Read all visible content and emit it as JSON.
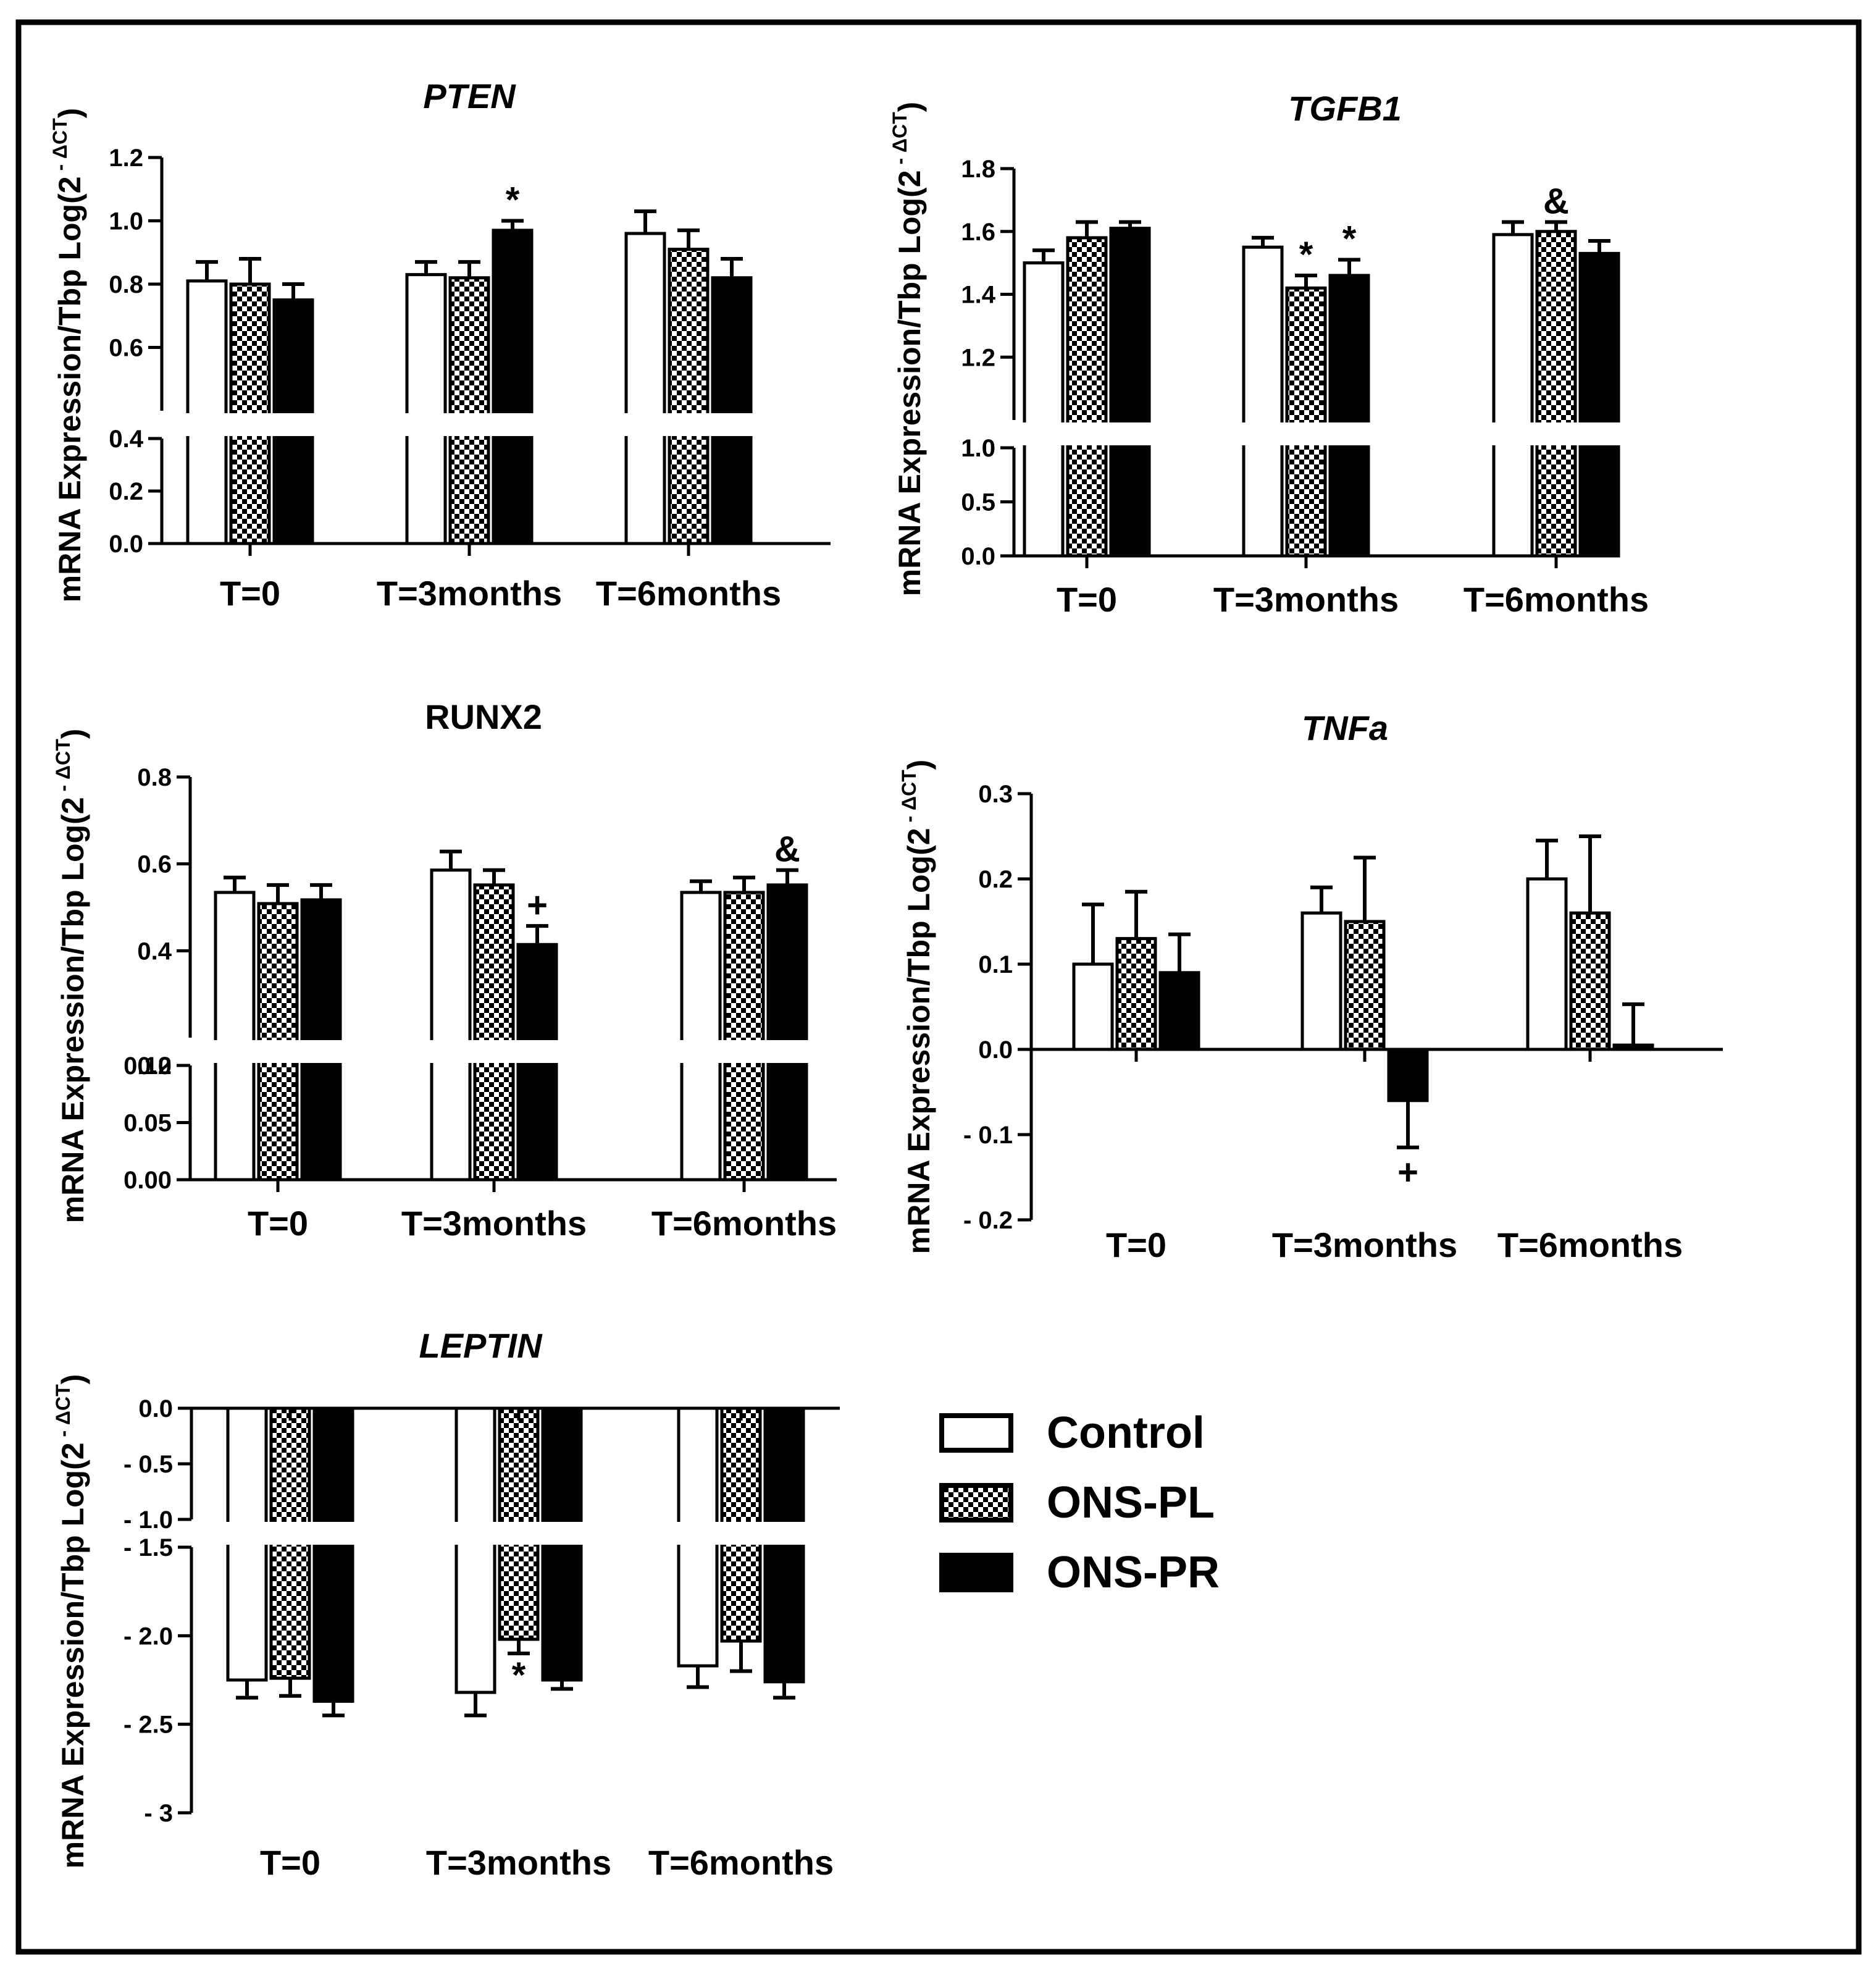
{
  "legend": {
    "items": [
      {
        "label": "Control",
        "style": "open"
      },
      {
        "label": "ONS-PL",
        "style": "checker"
      },
      {
        "label": "ONS-PR",
        "style": "solid"
      }
    ]
  },
  "chart_data": [
    {
      "id": "pten",
      "type": "bar",
      "title": "PTEN",
      "title_italic": true,
      "ylabel": "mRNA Expression/Tbp Log(2",
      "ylabel_exponent": "- ΔCT",
      "ylabel_close": ")",
      "categories": [
        "T=0",
        "T=3months",
        "T=6months"
      ],
      "series": [
        {
          "name": "Control",
          "values": [
            0.81,
            0.83,
            0.96
          ],
          "errors": [
            0.06,
            0.04,
            0.07
          ]
        },
        {
          "name": "ONS-PL",
          "values": [
            0.8,
            0.82,
            0.91
          ],
          "errors": [
            0.08,
            0.05,
            0.06
          ]
        },
        {
          "name": "ONS-PR",
          "values": [
            0.75,
            0.97,
            0.82
          ],
          "errors": [
            0.05,
            0.03,
            0.06
          ]
        }
      ],
      "segments": [
        {
          "range": [
            0.0,
            0.4
          ],
          "ticks": [
            "0.0",
            "0.2",
            "0.4"
          ]
        },
        {
          "range": [
            0.4,
            1.2
          ],
          "ticks": [
            "0.4",
            "0.6",
            "0.8",
            "1.0",
            "1.2"
          ]
        }
      ],
      "annotations": [
        {
          "series": 2,
          "category": 1,
          "text": "*"
        }
      ]
    },
    {
      "id": "tgfb1",
      "type": "bar",
      "title": "TGFB1",
      "title_italic": true,
      "ylabel": "mRNA Expression/Tbp Log(2",
      "ylabel_exponent": "- ΔCT",
      "ylabel_close": ")",
      "categories": [
        "T=0",
        "T=3months",
        "T=6months"
      ],
      "series": [
        {
          "name": "Control",
          "values": [
            1.5,
            1.55,
            1.59
          ],
          "errors": [
            0.04,
            0.03,
            0.04
          ]
        },
        {
          "name": "ONS-PL",
          "values": [
            1.58,
            1.42,
            1.6
          ],
          "errors": [
            0.05,
            0.04,
            0.03
          ]
        },
        {
          "name": "ONS-PR",
          "values": [
            1.61,
            1.46,
            1.53
          ],
          "errors": [
            0.02,
            0.05,
            0.04
          ]
        }
      ],
      "segments": [
        {
          "range": [
            0.0,
            1.0
          ],
          "ticks": [
            "0.0",
            "0.5",
            "1.0"
          ]
        },
        {
          "range": [
            1.0,
            1.8
          ],
          "ticks": [
            "1.0",
            "1.2",
            "1.4",
            "1.6",
            "1.8"
          ]
        }
      ],
      "annotations": [
        {
          "series": 1,
          "category": 1,
          "text": "*"
        },
        {
          "series": 2,
          "category": 1,
          "text": "*"
        },
        {
          "series": 1,
          "category": 2,
          "text": "&"
        }
      ]
    },
    {
      "id": "runx2",
      "type": "bar",
      "title": "RUNX2",
      "title_italic": false,
      "ylabel": "mRNA Expression/Tbp Log(2",
      "ylabel_exponent": "- ΔCT",
      "ylabel_close": ")",
      "categories": [
        "T=0",
        "T=3months",
        "T=6months"
      ],
      "series": [
        {
          "name": "Control",
          "values": [
            0.49,
            0.55,
            0.49
          ],
          "errors": [
            0.04,
            0.05,
            0.03
          ]
        },
        {
          "name": "ONS-PL",
          "values": [
            0.46,
            0.51,
            0.49
          ],
          "errors": [
            0.05,
            0.04,
            0.04
          ]
        },
        {
          "name": "ONS-PR",
          "values": [
            0.47,
            0.35,
            0.51
          ],
          "errors": [
            0.04,
            0.05,
            0.04
          ]
        }
      ],
      "segments": [
        {
          "range": [
            0.0,
            0.1
          ],
          "ticks": [
            "0.00",
            "0.05",
            "0.10"
          ]
        },
        {
          "range": [
            0.1,
            0.8
          ],
          "ticks": [
            "0.2",
            "0.4",
            "0.6",
            "0.8"
          ]
        }
      ],
      "annotations": [
        {
          "series": 2,
          "category": 1,
          "text": "+"
        },
        {
          "series": 2,
          "category": 2,
          "text": "&"
        }
      ]
    },
    {
      "id": "tnfa",
      "type": "bar",
      "title": "TNFa",
      "title_italic": true,
      "ylabel": "mRNA Expression/Tbp Log(2",
      "ylabel_exponent": "- ΔCT",
      "ylabel_close": ")",
      "categories": [
        "T=0",
        "T=3months",
        "T=6months"
      ],
      "series": [
        {
          "name": "Control",
          "values": [
            0.1,
            0.16,
            0.2
          ],
          "errors": [
            0.07,
            0.03,
            0.045
          ]
        },
        {
          "name": "ONS-PL",
          "values": [
            0.13,
            0.15,
            0.16
          ],
          "errors": [
            0.055,
            0.075,
            0.09
          ]
        },
        {
          "name": "ONS-PR",
          "values": [
            0.09,
            -0.06,
            0.005
          ],
          "errors": [
            0.045,
            0.055,
            0.048
          ]
        }
      ],
      "ylim": [
        -0.2,
        0.3
      ],
      "ticks": [
        "- 0.2",
        "- 0.1",
        "0.0",
        "0.1",
        "0.2",
        "0.3"
      ],
      "annotations": [
        {
          "series": 2,
          "category": 1,
          "text": "+"
        }
      ]
    },
    {
      "id": "leptin",
      "type": "bar",
      "title": "LEPTIN",
      "title_italic": true,
      "ylabel": "mRNA Expression/Tbp Log(2",
      "ylabel_exponent": "- ΔCT",
      "ylabel_close": ")",
      "categories": [
        "T=0",
        "T=3months",
        "T=6months"
      ],
      "series": [
        {
          "name": "Control",
          "values": [
            -2.25,
            -2.32,
            -2.17
          ],
          "errors": [
            0.1,
            0.13,
            0.12
          ]
        },
        {
          "name": "ONS-PL",
          "values": [
            -2.24,
            -2.02,
            -2.03
          ],
          "errors": [
            0.1,
            0.08,
            0.17
          ]
        },
        {
          "name": "ONS-PR",
          "values": [
            -2.37,
            -2.25,
            -2.26
          ],
          "errors": [
            0.08,
            0.05,
            0.09
          ]
        }
      ],
      "segments": [
        {
          "range": [
            -3.0,
            -1.5
          ],
          "ticks": [
            "- 3",
            "- 2.5",
            "- 2.0",
            "- 1.5"
          ]
        },
        {
          "range": [
            -1.0,
            0.0
          ],
          "ticks": [
            "- 1.0",
            "- 0.5",
            "0.0"
          ]
        }
      ],
      "annotations": [
        {
          "series": 1,
          "category": 1,
          "text": "*"
        }
      ]
    }
  ]
}
